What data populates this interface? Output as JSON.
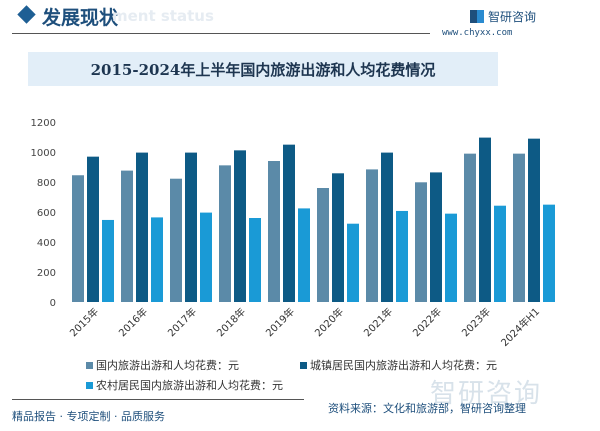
{
  "header": {
    "section_title": "发展现状",
    "ghost_text": "ment status",
    "logo_text": "智研咨询",
    "url": "www.chyxx.com"
  },
  "footer": {
    "slogan": "精品报告 · 专项定制 · 品质服务",
    "source": "资料来源：文化和旅游部，智研咨询整理",
    "watermark": "智研咨询"
  },
  "colors": {
    "series": [
      "#5b8aa8",
      "#0d5a85",
      "#1a9ad6"
    ],
    "banner": "#e2eef8",
    "accent": "#1e4f7c"
  },
  "chart_data": {
    "type": "bar",
    "title": "2015-2024年上半年国内旅游出游和人均花费情况",
    "categories": [
      "2015年",
      "2016年",
      "2017年",
      "2018年",
      "2019年",
      "2020年",
      "2021年",
      "2022年",
      "2023年",
      "2024年H1"
    ],
    "series": [
      {
        "name": "国内旅游出游和人均花费：元",
        "values": [
          845,
          876,
          822,
          911,
          940,
          760,
          884,
          798,
          989,
          989
        ]
      },
      {
        "name": "城镇居民国内旅游出游和人均花费：元",
        "values": [
          969,
          996,
          996,
          1011,
          1049,
          858,
          996,
          864,
          1096,
          1089
        ]
      },
      {
        "name": "农村居民国内旅游出游和人均花费：元",
        "values": [
          547,
          564,
          596,
          560,
          624,
          522,
          607,
          589,
          642,
          649
        ]
      }
    ],
    "yticks": [
      0,
      200,
      400,
      600,
      800,
      1000,
      1200
    ],
    "ylim": [
      0,
      1200
    ],
    "grid": false,
    "legend": "bottom"
  }
}
